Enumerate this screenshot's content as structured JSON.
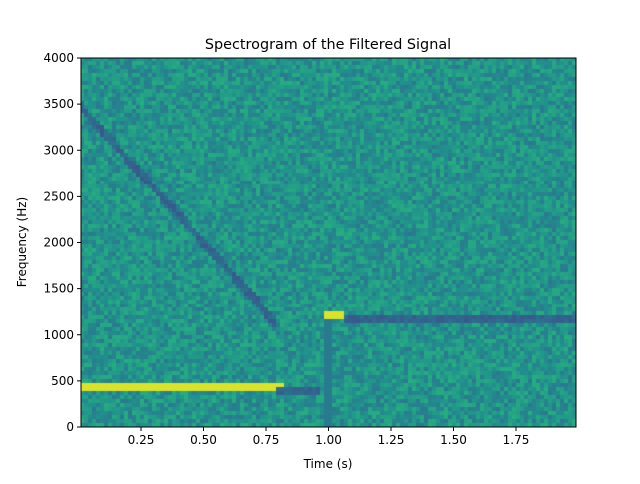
{
  "chart_data": {
    "type": "heatmap",
    "title": "Spectrogram of the Filtered Signal",
    "xlabel": "Time (s)",
    "ylabel": "Frequency (Hz)",
    "xlim": [
      0.01,
      1.99
    ],
    "ylim": [
      0,
      4000
    ],
    "xticks": [
      0.25,
      0.5,
      0.75,
      1.0,
      1.25,
      1.5,
      1.75
    ],
    "xtick_labels": [
      "0.25",
      "0.50",
      "0.75",
      "1.00",
      "1.25",
      "1.50",
      "1.75"
    ],
    "yticks": [
      0,
      500,
      1000,
      1500,
      2000,
      2500,
      3000,
      3500,
      4000
    ],
    "ytick_labels": [
      "0",
      "500",
      "1000",
      "1500",
      "2000",
      "2500",
      "3000",
      "3500",
      "4000"
    ],
    "colormap": "viridis",
    "grid": false,
    "features": [
      {
        "kind": "tone",
        "t_start": 0.0,
        "t_end": 0.82,
        "freq_hz": 420,
        "intensity": "high"
      },
      {
        "kind": "chirp",
        "t_start": 0.0,
        "t_end": 0.8,
        "freq_start_hz": 3500,
        "freq_end_hz": 1100,
        "intensity": "low"
      },
      {
        "kind": "tone",
        "t_start": 0.8,
        "t_end": 0.97,
        "freq_hz": 400,
        "intensity": "low"
      },
      {
        "kind": "impulse",
        "t": 1.0,
        "freq_hz_range": [
          0,
          1200
        ],
        "intensity": "low"
      },
      {
        "kind": "tone",
        "t_start": 0.99,
        "t_end": 1.07,
        "freq_hz": 1200,
        "intensity": "high"
      },
      {
        "kind": "tone",
        "t_start": 1.07,
        "t_end": 1.99,
        "freq_hz": 1180,
        "intensity": "low"
      }
    ]
  }
}
